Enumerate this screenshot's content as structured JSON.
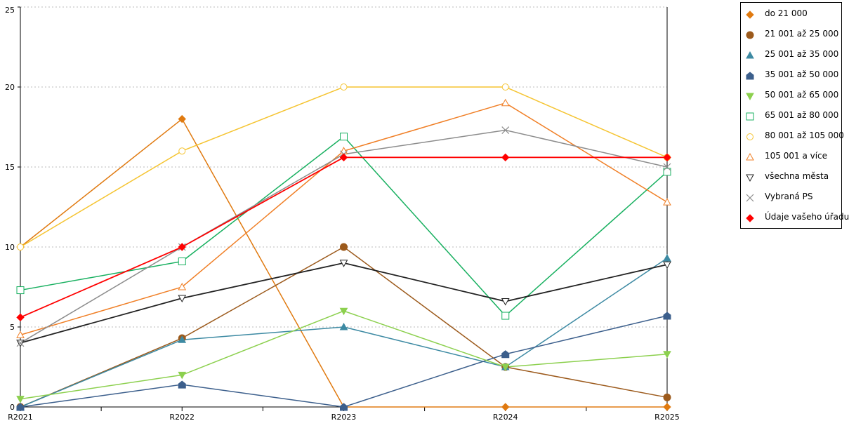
{
  "chart_data": {
    "type": "line",
    "categories": [
      "R2021",
      "R2022",
      "R2023",
      "R2024",
      "R2025"
    ],
    "ylim": [
      0,
      25
    ],
    "yticks": [
      0,
      5,
      10,
      15,
      20,
      25
    ],
    "grid": "horizontal dotted",
    "legend_position": "right",
    "series": [
      {
        "name": "do 21 000",
        "marker": "diamond-filled",
        "color": "#e07a10",
        "values": [
          10,
          18,
          0,
          0,
          0
        ]
      },
      {
        "name": "21 001 až 25 000",
        "marker": "circle-filled",
        "color": "#9c5a1c",
        "values": [
          0,
          4.3,
          10,
          2.5,
          0.6
        ]
      },
      {
        "name": "25 001 až 35 000",
        "marker": "triangle-filled",
        "color": "#3d8aa3",
        "values": [
          0,
          4.2,
          5,
          2.5,
          9.3
        ]
      },
      {
        "name": "35 001 až 50 000",
        "marker": "house-filled",
        "color": "#3c5f8c",
        "values": [
          0,
          1.4,
          0,
          3.3,
          5.7
        ]
      },
      {
        "name": "50 001 až 65 000",
        "marker": "triangle-down-filled",
        "color": "#8cd04e",
        "values": [
          0.5,
          2,
          6,
          2.5,
          3.3
        ]
      },
      {
        "name": "65 001 až 80 000",
        "marker": "square-open",
        "color": "#18b060",
        "values": [
          7.3,
          9.1,
          16.9,
          5.7,
          14.7
        ]
      },
      {
        "name": "80 001 až 105 000",
        "marker": "circle-open",
        "color": "#f5c431",
        "values": [
          10,
          16,
          20,
          20,
          15.6
        ]
      },
      {
        "name": "105 001 a více",
        "marker": "triangle-open",
        "color": "#f07f26",
        "values": [
          4.5,
          7.5,
          16,
          19,
          12.8
        ]
      },
      {
        "name": "všechna města",
        "marker": "triangle-down-open",
        "color": "#222222",
        "values": [
          4,
          6.8,
          9,
          6.6,
          8.9
        ]
      },
      {
        "name": "Vybraná PS",
        "marker": "x",
        "color": "#8c8c8c",
        "values": [
          4,
          10,
          15.8,
          17.3,
          15
        ]
      },
      {
        "name": "Údaje vašeho úřadu",
        "marker": "diamond-filled",
        "color": "#ff0000",
        "values": [
          5.6,
          10,
          15.6,
          15.6,
          15.6
        ]
      }
    ]
  }
}
